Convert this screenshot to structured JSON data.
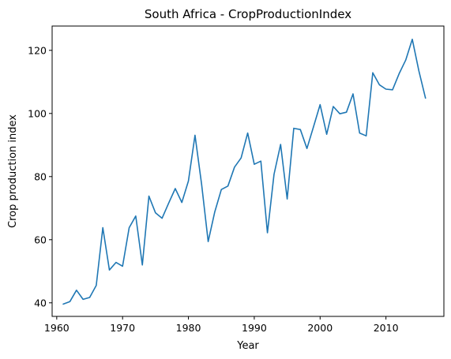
{
  "chart_data": {
    "type": "line",
    "title": "South Africa - CropProductionIndex",
    "xlabel": "Year",
    "ylabel": "Crop production index",
    "xlim": [
      1959.3,
      2018.8
    ],
    "ylim": [
      35.7,
      127.7
    ],
    "xticks": [
      1960,
      1970,
      1980,
      1990,
      2000,
      2010
    ],
    "yticks": [
      40,
      60,
      80,
      100,
      120
    ],
    "grid": false,
    "color": "#1f77b4",
    "series": [
      {
        "x": [
          1961,
          1962,
          1963,
          1964,
          1965,
          1966,
          1967,
          1968,
          1969,
          1970,
          1971,
          1972,
          1973,
          1974,
          1975,
          1976,
          1977,
          1978,
          1979,
          1980,
          1981,
          1982,
          1983,
          1984,
          1985,
          1986,
          1987,
          1988,
          1989,
          1990,
          1991,
          1992,
          1993,
          1994,
          1995,
          1996,
          1997,
          1998,
          1999,
          2000,
          2001,
          2002,
          2003,
          2004,
          2005,
          2006,
          2007,
          2008,
          2009,
          2010,
          2011,
          2012,
          2013,
          2014,
          2015,
          2016
        ],
        "y": [
          39.6,
          40.4,
          44.0,
          41.1,
          41.7,
          45.5,
          63.8,
          50.4,
          52.8,
          51.6,
          63.8,
          67.5,
          52.0,
          73.8,
          68.5,
          66.8,
          71.6,
          76.2,
          71.8,
          78.6,
          93.1,
          77.6,
          59.4,
          68.8,
          75.9,
          77.0,
          83.0,
          85.9,
          93.8,
          83.9,
          84.9,
          62.2,
          80.7,
          90.2,
          72.9,
          95.3,
          94.9,
          88.9,
          95.8,
          102.8,
          93.4,
          102.2,
          99.9,
          100.4,
          106.2,
          93.8,
          92.9,
          112.9,
          109.1,
          107.7,
          107.5,
          112.6,
          116.9,
          123.5,
          113.5,
          104.9
        ]
      }
    ]
  }
}
